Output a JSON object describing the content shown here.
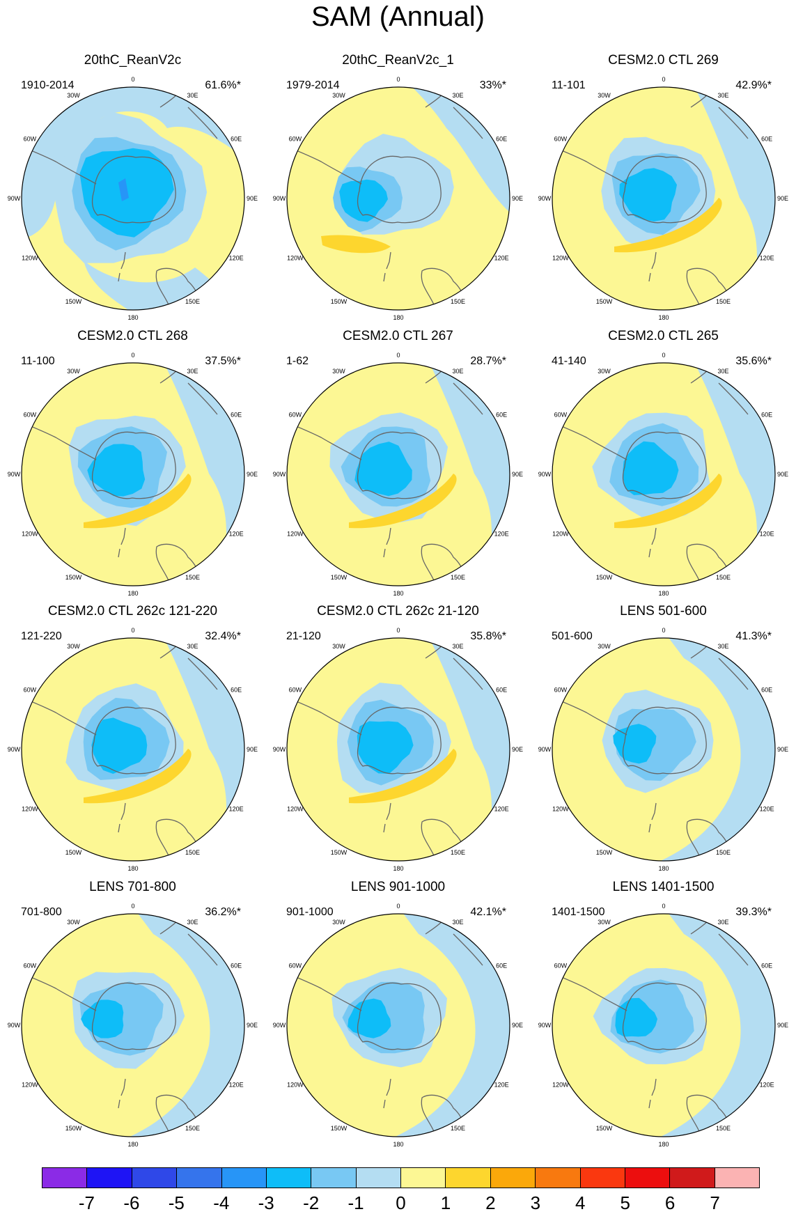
{
  "title": "SAM (Annual)",
  "longitude_labels": [
    "0",
    "30E",
    "60E",
    "90E",
    "120E",
    "150E",
    "180",
    "150W",
    "120W",
    "90W",
    "60W",
    "30W"
  ],
  "panels": [
    {
      "title": "20thC_ReanV2c",
      "period": "1910-2014",
      "percent": "61.6%*",
      "style": "rean"
    },
    {
      "title": "20thC_ReanV2c_1",
      "period": "1979-2014",
      "percent": "33%*",
      "style": "rean1"
    },
    {
      "title": "CESM2.0 CTL 269",
      "period": "11-101",
      "percent": "42.9%*",
      "style": "model"
    },
    {
      "title": "CESM2.0 CTL 268",
      "period": "11-100",
      "percent": "37.5%*",
      "style": "model"
    },
    {
      "title": "CESM2.0 CTL 267",
      "period": "1-62",
      "percent": "28.7%*",
      "style": "model"
    },
    {
      "title": "CESM2.0 CTL 265",
      "period": "41-140",
      "percent": "35.6%*",
      "style": "model"
    },
    {
      "title": "CESM2.0 CTL 262c 121-220",
      "period": "121-220",
      "percent": "32.4%*",
      "style": "model"
    },
    {
      "title": "CESM2.0 CTL 262c 21-120",
      "period": "21-120",
      "percent": "35.8%*",
      "style": "model"
    },
    {
      "title": "LENS 501-600",
      "period": "501-600",
      "percent": "41.3%*",
      "style": "lens"
    },
    {
      "title": "LENS 701-800",
      "period": "701-800",
      "percent": "36.2%*",
      "style": "lens"
    },
    {
      "title": "LENS 901-1000",
      "period": "901-1000",
      "percent": "42.1%*",
      "style": "lens"
    },
    {
      "title": "LENS 1401-1500",
      "period": "1401-1500",
      "percent": "39.3%*",
      "style": "lens"
    }
  ],
  "colorbar": {
    "labels": [
      "-7",
      "-6",
      "-5",
      "-4",
      "-3",
      "-2",
      "-1",
      "0",
      "1",
      "2",
      "3",
      "4",
      "5",
      "6",
      "7"
    ],
    "colors": [
      "#8b2be6",
      "#1e14f5",
      "#2f48e8",
      "#3574ec",
      "#2795f7",
      "#0ebdf8",
      "#78c8f3",
      "#b4ddf2",
      "#fcf794",
      "#fdd62e",
      "#fba80a",
      "#f8790f",
      "#fa380f",
      "#ec0e0e",
      "#d01a1b",
      "#fbb3b3"
    ]
  },
  "fills": {
    "p0": "#fcf794",
    "p1": "#fdd62e",
    "n1": "#b4ddf2",
    "n2": "#78c8f3",
    "n3": "#0ebdf8",
    "n4": "#2795f7"
  }
}
